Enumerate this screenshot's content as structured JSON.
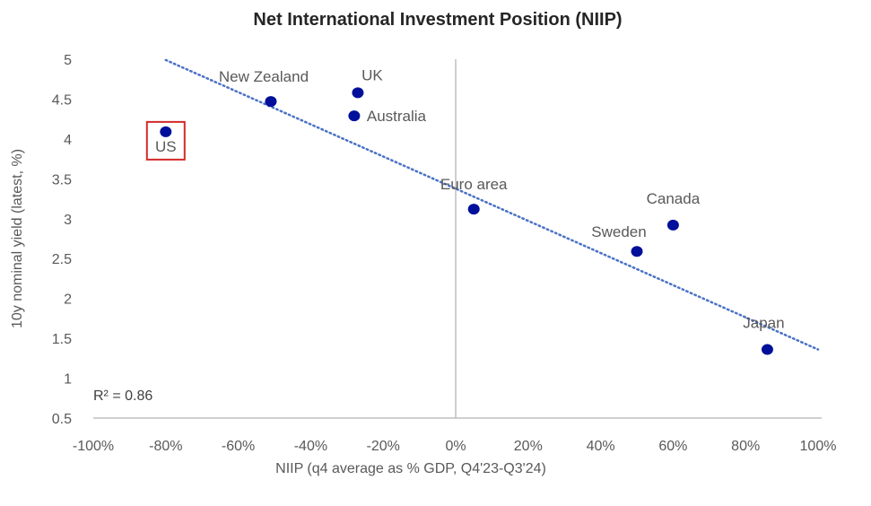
{
  "chart_data": {
    "type": "scatter",
    "title": "Net International Investment Position (NIIP)",
    "xlabel": "NIIP (q4 average as % GDP, Q4'23-Q3'24)",
    "ylabel": "10y nominal yield (latest, %)",
    "xlim": [
      -100,
      100
    ],
    "ylim": [
      0.5,
      5
    ],
    "x_ticks": [
      "-100%",
      "-80%",
      "-60%",
      "-40%",
      "-20%",
      "0%",
      "20%",
      "40%",
      "60%",
      "80%",
      "100%"
    ],
    "y_ticks": [
      "0.5",
      "1",
      "1.5",
      "2",
      "2.5",
      "3",
      "3.5",
      "4",
      "4.5",
      "5"
    ],
    "grid": false,
    "points": [
      {
        "label": "US",
        "x": -80,
        "y": 4.09,
        "highlighted": true
      },
      {
        "label": "New Zealand",
        "x": -51,
        "y": 4.47
      },
      {
        "label": "UK",
        "x": -27,
        "y": 4.58
      },
      {
        "label": "Australia",
        "x": -28,
        "y": 4.29
      },
      {
        "label": "Euro area",
        "x": 5,
        "y": 3.12
      },
      {
        "label": "Canada",
        "x": 60,
        "y": 2.92
      },
      {
        "label": "Sweden",
        "x": 50,
        "y": 2.59
      },
      {
        "label": "Japan",
        "x": 86,
        "y": 1.36
      }
    ],
    "trendline": {
      "type": "linear",
      "from": [
        -80,
        4.99
      ],
      "to": [
        100,
        1.36
      ],
      "style": "dotted"
    },
    "annotation": "R² = 0.86",
    "colors": {
      "points": "#00109a",
      "trendline": "#4a72c4",
      "highlight_box": "#d42a2a",
      "axis": "#bfbfbf",
      "text": "#595959"
    }
  }
}
